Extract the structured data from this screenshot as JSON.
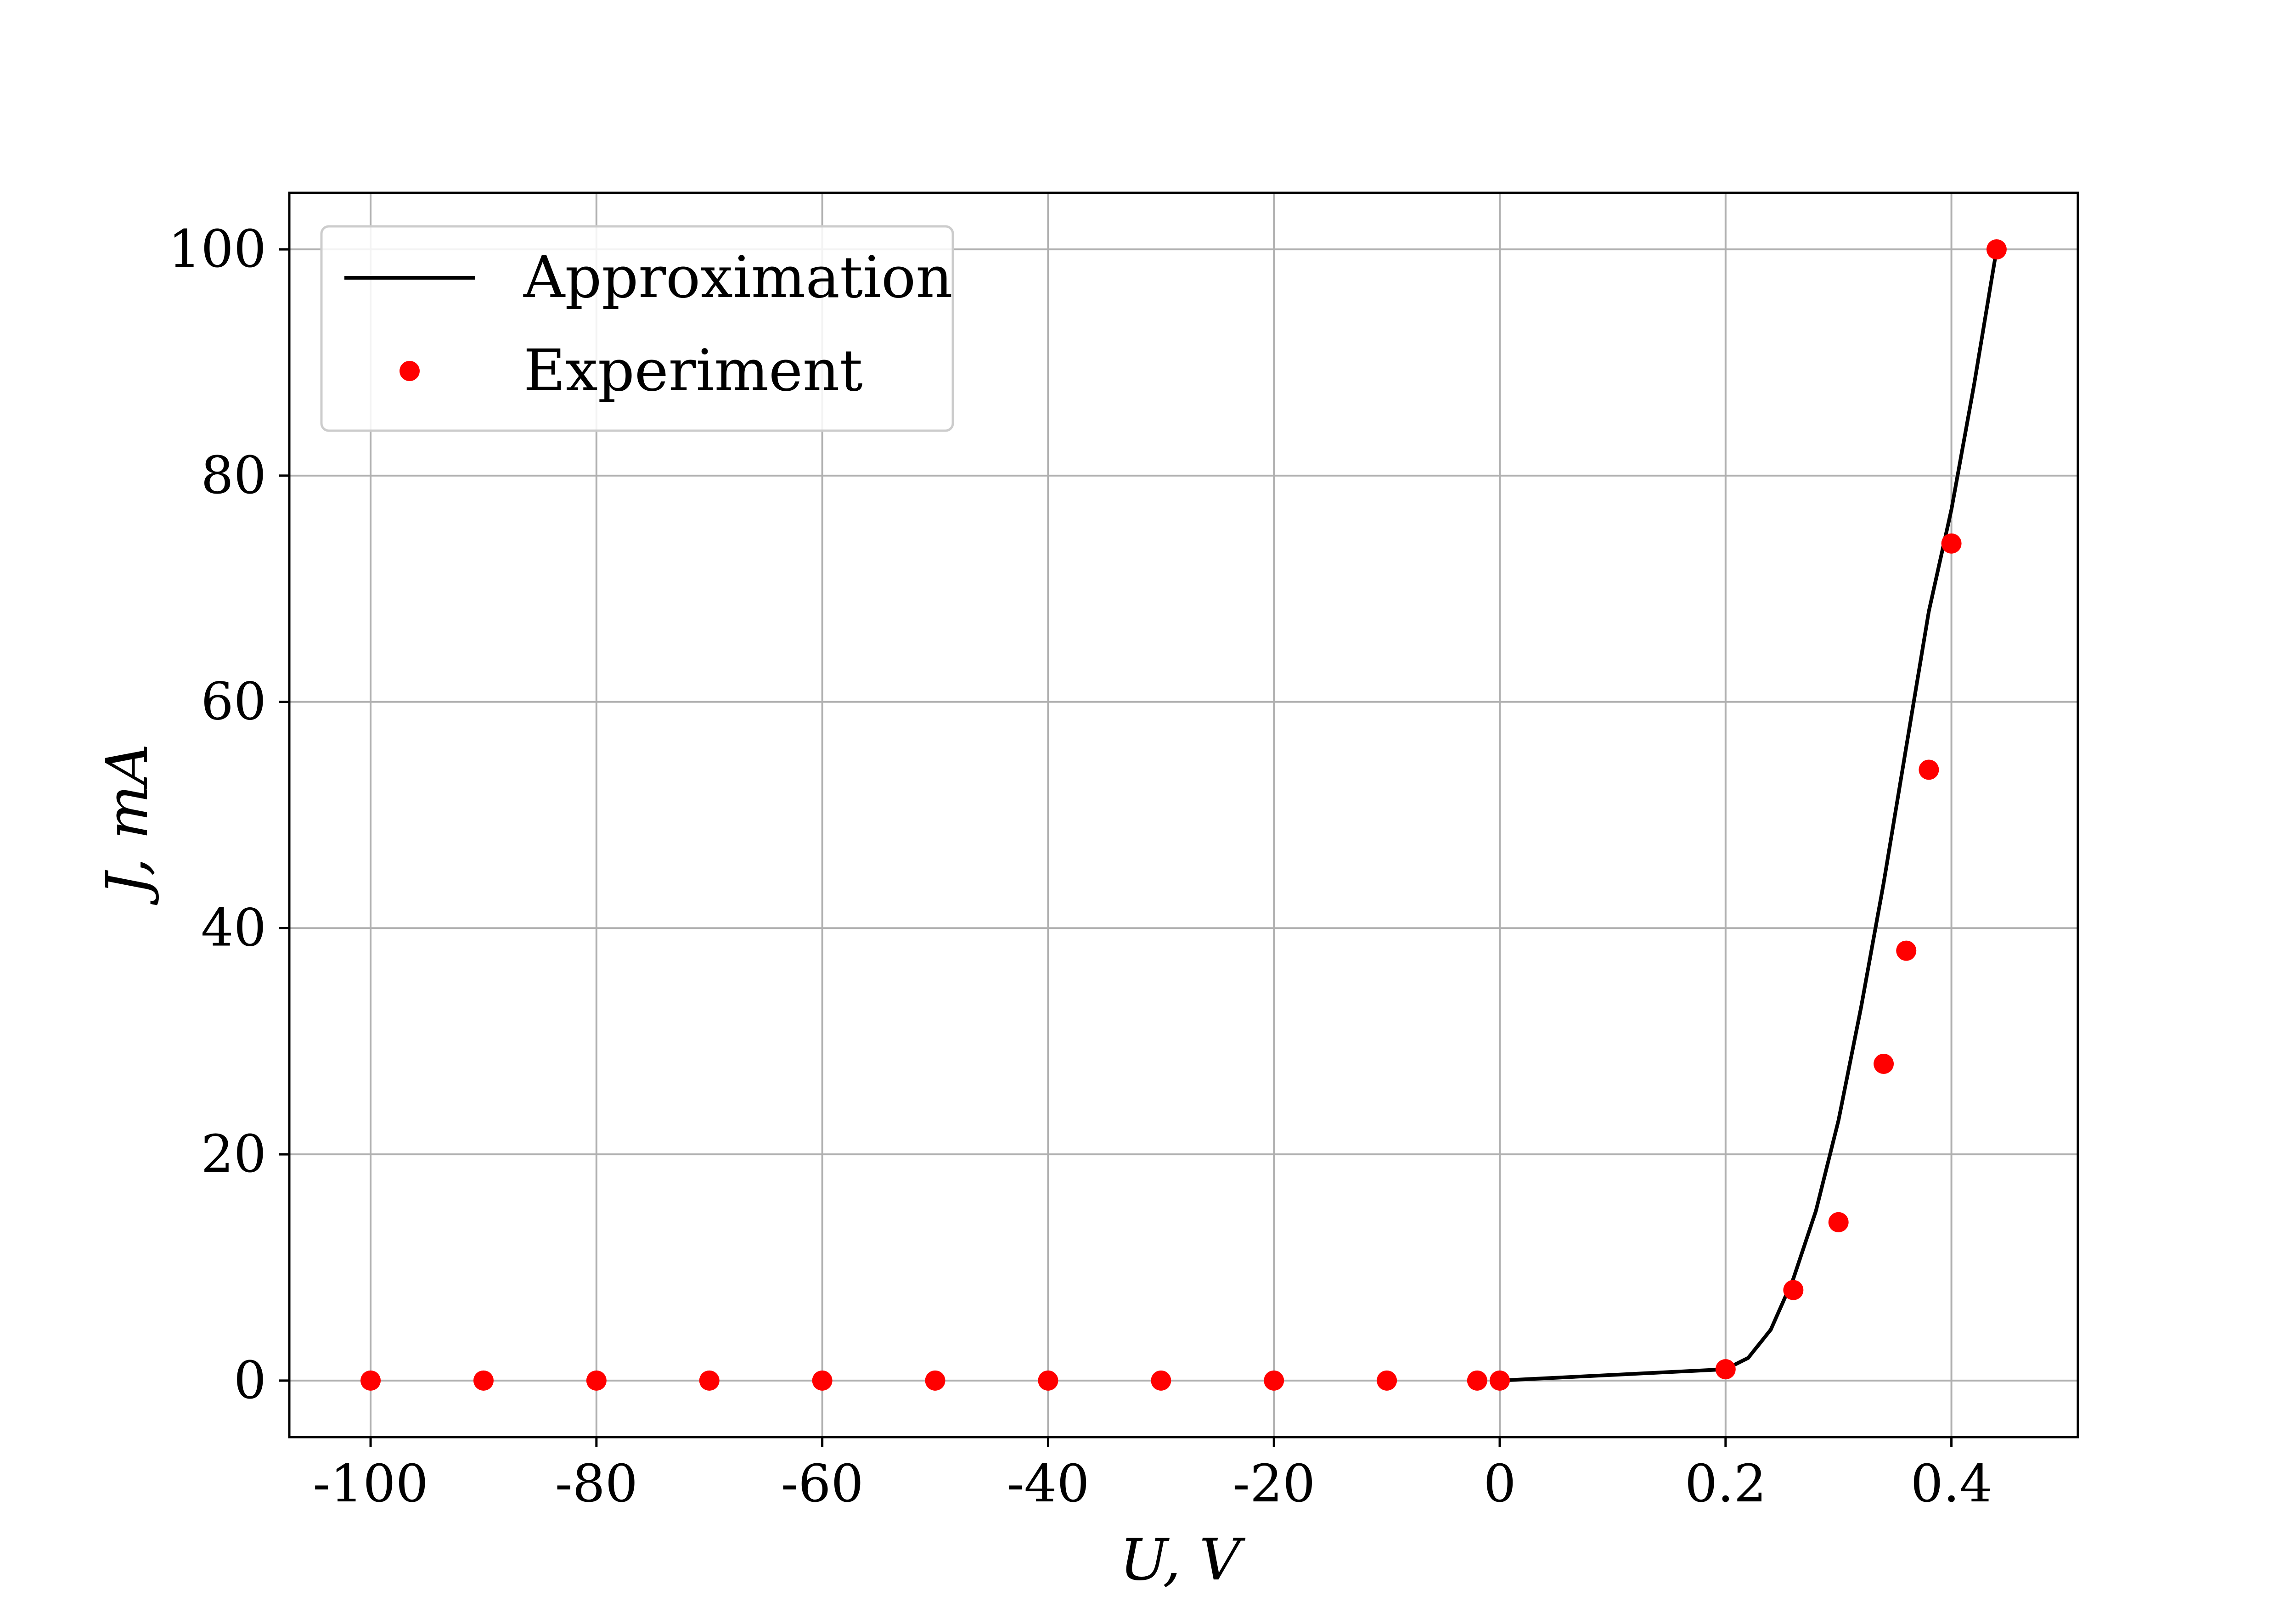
{
  "chart_data": {
    "type": "line",
    "title": "",
    "xlabel": "U, V",
    "ylabel": "J, mA",
    "grid": true,
    "legend_placement": "top-left",
    "x_tick_labels": [
      "-100",
      "-80",
      "-60",
      "-40",
      "-20",
      "0",
      "0.2",
      "0.4"
    ],
    "x_tick_positions": [
      -5,
      -4,
      -3,
      -2,
      -1,
      0,
      1,
      2
    ],
    "x_scale_note": "non-uniform axis: negative side in steps of 20 V per unit, positive side in steps of 0.2 V per unit",
    "xlim": [
      -5.36,
      2.56
    ],
    "y_ticks": [
      0,
      20,
      40,
      60,
      80,
      100
    ],
    "ylim": [
      -5,
      105
    ],
    "series": [
      {
        "name": "Approximation",
        "kind": "line",
        "color": "#000000",
        "x_display": [
          0,
          1,
          1.1,
          1.2,
          1.3,
          1.4,
          1.5,
          1.6,
          1.7,
          1.8,
          1.9,
          2.0,
          2.1,
          2.2
        ],
        "y": [
          0,
          1,
          2,
          4.5,
          9,
          15,
          23,
          33,
          44,
          56,
          68,
          77,
          88,
          100
        ]
      },
      {
        "name": "Experiment",
        "kind": "scatter",
        "color": "#ff0000",
        "x_labels": [
          "-100",
          "-90",
          "-80",
          "-70",
          "-60",
          "-50",
          "-40",
          "-30",
          "-20",
          "-10",
          "-2",
          "0",
          "0.2",
          "0.26",
          "0.3",
          "0.34",
          "0.36",
          "0.38",
          "0.4",
          "0.44"
        ],
        "x_display": [
          -5,
          -4.5,
          -4,
          -3.5,
          -3,
          -2.5,
          -2,
          -1.5,
          -1,
          -0.5,
          -0.1,
          0,
          1,
          1.3,
          1.5,
          1.7,
          1.8,
          1.9,
          2.0,
          2.2
        ],
        "y": [
          0,
          0,
          0,
          0,
          0,
          0,
          0,
          0,
          0,
          0,
          0,
          0,
          1,
          8,
          14,
          28,
          38,
          54,
          74,
          100
        ]
      }
    ]
  }
}
